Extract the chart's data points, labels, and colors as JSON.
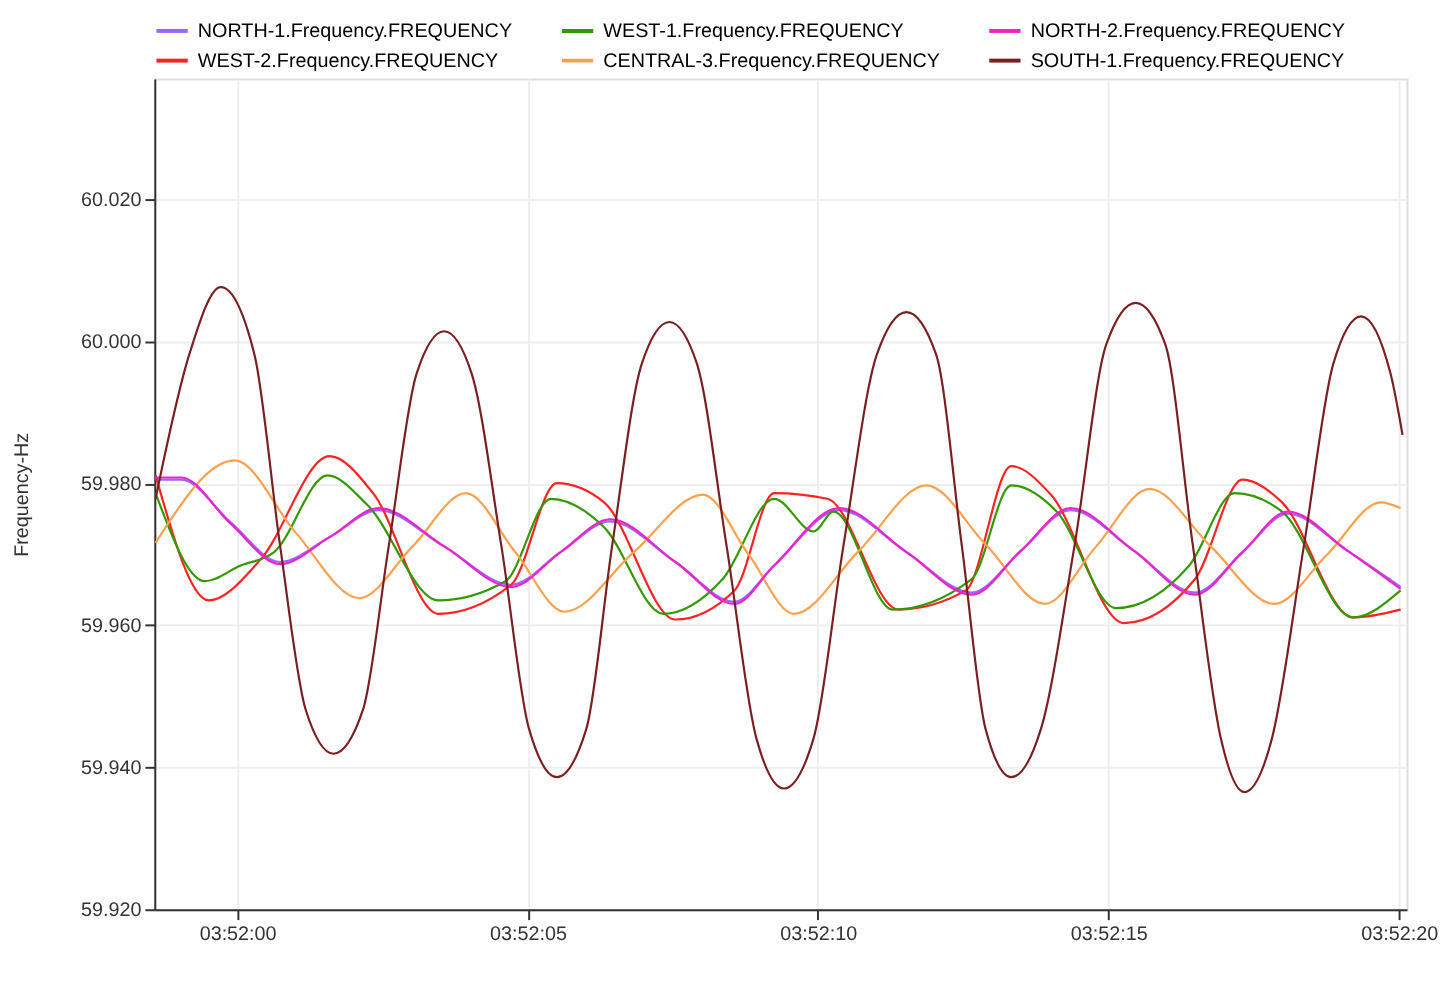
{
  "chart_data": {
    "type": "line",
    "ylabel": "Frequency-Hz",
    "legend": "top",
    "grid": true,
    "line_style": "solid",
    "marker": "none",
    "xlim": [
      3.866271,
      3.872259
    ],
    "ylim": [
      59.92,
      60.037
    ],
    "xticks": [
      {
        "value": 3.866667,
        "label": "03:52:00"
      },
      {
        "value": 3.868056,
        "label": "03:52:05"
      },
      {
        "value": 3.869444,
        "label": "03:52:10"
      },
      {
        "value": 3.870833,
        "label": "03:52:15"
      },
      {
        "value": 3.872222,
        "label": "03:52:20"
      }
    ],
    "yticks": [
      {
        "value": 59.92,
        "label": "59.920"
      },
      {
        "value": 59.94,
        "label": "59.940"
      },
      {
        "value": 59.96,
        "label": "59.960"
      },
      {
        "value": 59.98,
        "label": "59.980"
      },
      {
        "value": 60.0,
        "label": "60.000"
      },
      {
        "value": 60.02,
        "label": "60.020"
      }
    ],
    "series": [
      {
        "name": "NORTH-1.Frequency.FREQUENCY",
        "color": "#9966ff",
        "x": [
          3.866277,
          3.8664,
          3.866636,
          3.866873,
          3.867109,
          3.867345,
          3.867657,
          3.867978,
          3.868214,
          3.868451,
          3.868763,
          3.869046,
          3.869235,
          3.869547,
          3.869868,
          3.87018,
          3.870416,
          3.870653,
          3.870955,
          3.871248,
          3.871475,
          3.871692,
          3.871976,
          3.872231
        ],
        "values": [
          59.9805,
          59.9805,
          59.9745,
          59.9689,
          59.9724,
          59.9762,
          59.9711,
          59.9657,
          59.9703,
          59.9746,
          59.9689,
          59.9633,
          59.9684,
          59.9762,
          59.9703,
          59.9646,
          59.9705,
          59.9762,
          59.9705,
          59.9646,
          59.9703,
          59.9757,
          59.9705,
          59.9654
        ]
      },
      {
        "name": "WEST-2.Frequency.FREQUENCY",
        "color": "#ff2222",
        "x": [
          3.866277,
          3.866532,
          3.866778,
          3.867109,
          3.867317,
          3.867629,
          3.867978,
          3.868196,
          3.868422,
          3.868763,
          3.869046,
          3.869235,
          3.86949,
          3.86983,
          3.870152,
          3.870369,
          3.870558,
          3.870908,
          3.871248,
          3.871475,
          3.871664,
          3.872004,
          3.872231
        ],
        "values": [
          59.9811,
          59.9635,
          59.9692,
          59.9838,
          59.9786,
          59.9616,
          59.9657,
          59.98,
          59.9773,
          59.9608,
          59.9649,
          59.9786,
          59.9778,
          59.9622,
          59.9649,
          59.9824,
          59.9784,
          59.9603,
          59.9665,
          59.9805,
          59.9773,
          59.9611,
          59.9622
        ]
      },
      {
        "name": "WEST-1.Frequency.FREQUENCY",
        "color": "#339900",
        "x": [
          3.866277,
          3.866513,
          3.866684,
          3.866844,
          3.867099,
          3.867288,
          3.867629,
          3.86795,
          3.868167,
          3.868422,
          3.868706,
          3.868989,
          3.869235,
          3.869424,
          3.869519,
          3.869802,
          3.87018,
          3.870369,
          3.870586,
          3.87087,
          3.87122,
          3.871437,
          3.871664,
          3.872004,
          3.872231
        ],
        "values": [
          59.9786,
          59.9662,
          59.9684,
          59.9703,
          59.9811,
          59.977,
          59.9635,
          59.9662,
          59.9778,
          59.9738,
          59.9616,
          59.9665,
          59.9778,
          59.9732,
          59.976,
          59.9622,
          59.9665,
          59.9797,
          59.976,
          59.9624,
          59.9684,
          59.9786,
          59.976,
          59.9611,
          59.9649
        ]
      },
      {
        "name": "CENTRAL-3.Frequency.FREQUENCY",
        "color": "#ffa04c",
        "x": [
          3.866277,
          3.866655,
          3.866948,
          3.867251,
          3.867506,
          3.867761,
          3.867997,
          3.868233,
          3.868564,
          3.868895,
          3.869112,
          3.86933,
          3.869641,
          3.869963,
          3.870246,
          3.87053,
          3.870775,
          3.871031,
          3.871323,
          3.871626,
          3.871881,
          3.872136,
          3.872231
        ],
        "values": [
          59.9716,
          59.9832,
          59.973,
          59.9638,
          59.9711,
          59.9786,
          59.9703,
          59.9619,
          59.9703,
          59.9784,
          59.97,
          59.9616,
          59.9705,
          59.9797,
          59.9714,
          59.963,
          59.9711,
          59.9792,
          59.9711,
          59.963,
          59.97,
          59.9773,
          59.9765
        ]
      },
      {
        "name": "NORTH-2.Frequency.FREQUENCY",
        "color": "#ee22cc",
        "x": [
          3.866277,
          3.8664,
          3.866636,
          3.866873,
          3.867109,
          3.867345,
          3.867657,
          3.867978,
          3.868214,
          3.868451,
          3.868763,
          3.869046,
          3.869235,
          3.869547,
          3.869868,
          3.87018,
          3.870416,
          3.870653,
          3.870955,
          3.871248,
          3.871475,
          3.871692,
          3.871976,
          3.872231
        ],
        "values": [
          59.9808,
          59.9808,
          59.9743,
          59.9686,
          59.9724,
          59.9765,
          59.9711,
          59.9654,
          59.9703,
          59.9749,
          59.9689,
          59.963,
          59.9684,
          59.9765,
          59.9703,
          59.9643,
          59.9705,
          59.9765,
          59.9705,
          59.9643,
          59.9703,
          59.976,
          59.9705,
          59.9651
        ]
      },
      {
        "name": "SOUTH-1.Frequency.FREQUENCY",
        "color": "#7a1f1f",
        "x": [
          3.866277,
          3.866438,
          3.866589,
          3.86675,
          3.866873,
          3.866995,
          3.867128,
          3.867269,
          3.867392,
          3.867525,
          3.867657,
          3.867789,
          3.867931,
          3.868063,
          3.868196,
          3.868337,
          3.86846,
          3.868602,
          3.868734,
          3.868866,
          3.869008,
          3.86915,
          3.869282,
          3.869424,
          3.869566,
          3.869726,
          3.869868,
          3.87001,
          3.870133,
          3.870246,
          3.870369,
          3.870511,
          3.870671,
          3.870823,
          3.870964,
          3.871106,
          3.871238,
          3.871371,
          3.871484,
          3.871616,
          3.871768,
          3.871909,
          3.872042,
          3.872183,
          3.87224
        ],
        "values": [
          59.9778,
          59.9981,
          60.0076,
          59.9981,
          59.9711,
          59.9481,
          59.9419,
          59.9481,
          59.9711,
          59.9954,
          60.0014,
          59.9954,
          59.9711,
          59.9454,
          59.9386,
          59.9454,
          59.9711,
          59.9968,
          60.0027,
          59.9968,
          59.9711,
          59.9441,
          59.937,
          59.9441,
          59.9711,
          59.9981,
          60.0041,
          59.9981,
          59.9711,
          59.9454,
          59.9386,
          59.9454,
          59.9711,
          59.9995,
          60.0054,
          59.9995,
          59.9711,
          59.9441,
          59.9365,
          59.9441,
          59.9711,
          59.9968,
          60.0035,
          59.9954,
          59.9868
        ]
      }
    ]
  }
}
